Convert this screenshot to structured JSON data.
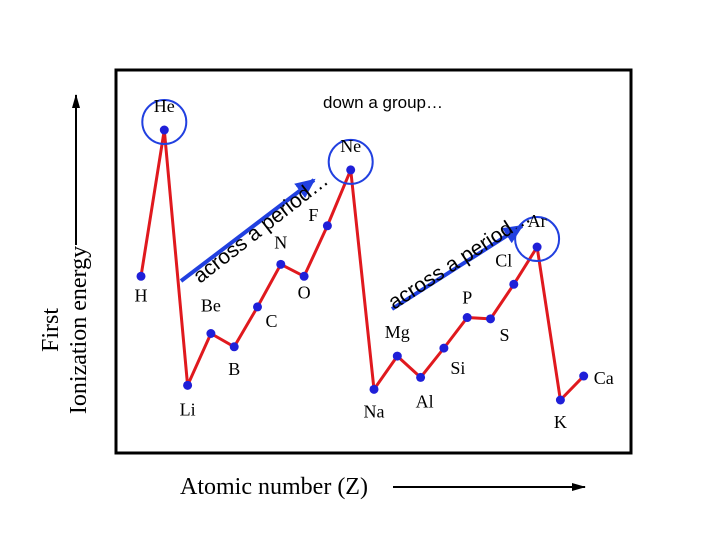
{
  "chart_data": {
    "type": "line",
    "title": "down a group…",
    "xlabel": "Atomic number (Z)",
    "ylabel_line1": "First",
    "ylabel_line2": "Ionization energy",
    "period_annotation_1": "across a period…",
    "period_annotation_2": "across a period…",
    "x_range": [
      1,
      20
    ],
    "ylim": [
      0,
      25
    ],
    "y_unit": "eV",
    "grid": false,
    "legend": "none",
    "colors": {
      "line": "#e0191e",
      "point": "#1f1fd8",
      "arrow": "#2140e0",
      "frame": "#000000"
    },
    "points": [
      {
        "z": 1,
        "symbol": "H",
        "ie": 13.6
      },
      {
        "z": 2,
        "symbol": "He",
        "ie": 24.6
      },
      {
        "z": 3,
        "symbol": "Li",
        "ie": 5.4
      },
      {
        "z": 4,
        "symbol": "Be",
        "ie": 9.3
      },
      {
        "z": 5,
        "symbol": "B",
        "ie": 8.3
      },
      {
        "z": 6,
        "symbol": "C",
        "ie": 11.3
      },
      {
        "z": 7,
        "symbol": "N",
        "ie": 14.5
      },
      {
        "z": 8,
        "symbol": "O",
        "ie": 13.6
      },
      {
        "z": 9,
        "symbol": "F",
        "ie": 17.4
      },
      {
        "z": 10,
        "symbol": "Ne",
        "ie": 21.6
      },
      {
        "z": 11,
        "symbol": "Na",
        "ie": 5.1
      },
      {
        "z": 12,
        "symbol": "Mg",
        "ie": 7.6
      },
      {
        "z": 13,
        "symbol": "Al",
        "ie": 6.0
      },
      {
        "z": 14,
        "symbol": "Si",
        "ie": 8.2
      },
      {
        "z": 15,
        "symbol": "P",
        "ie": 10.5
      },
      {
        "z": 16,
        "symbol": "S",
        "ie": 10.4
      },
      {
        "z": 17,
        "symbol": "Cl",
        "ie": 13.0
      },
      {
        "z": 18,
        "symbol": "Ar",
        "ie": 15.8
      },
      {
        "z": 19,
        "symbol": "K",
        "ie": 4.3
      },
      {
        "z": 20,
        "symbol": "Ca",
        "ie": 6.1
      }
    ],
    "circled": [
      "He",
      "Ne",
      "Ar"
    ]
  }
}
